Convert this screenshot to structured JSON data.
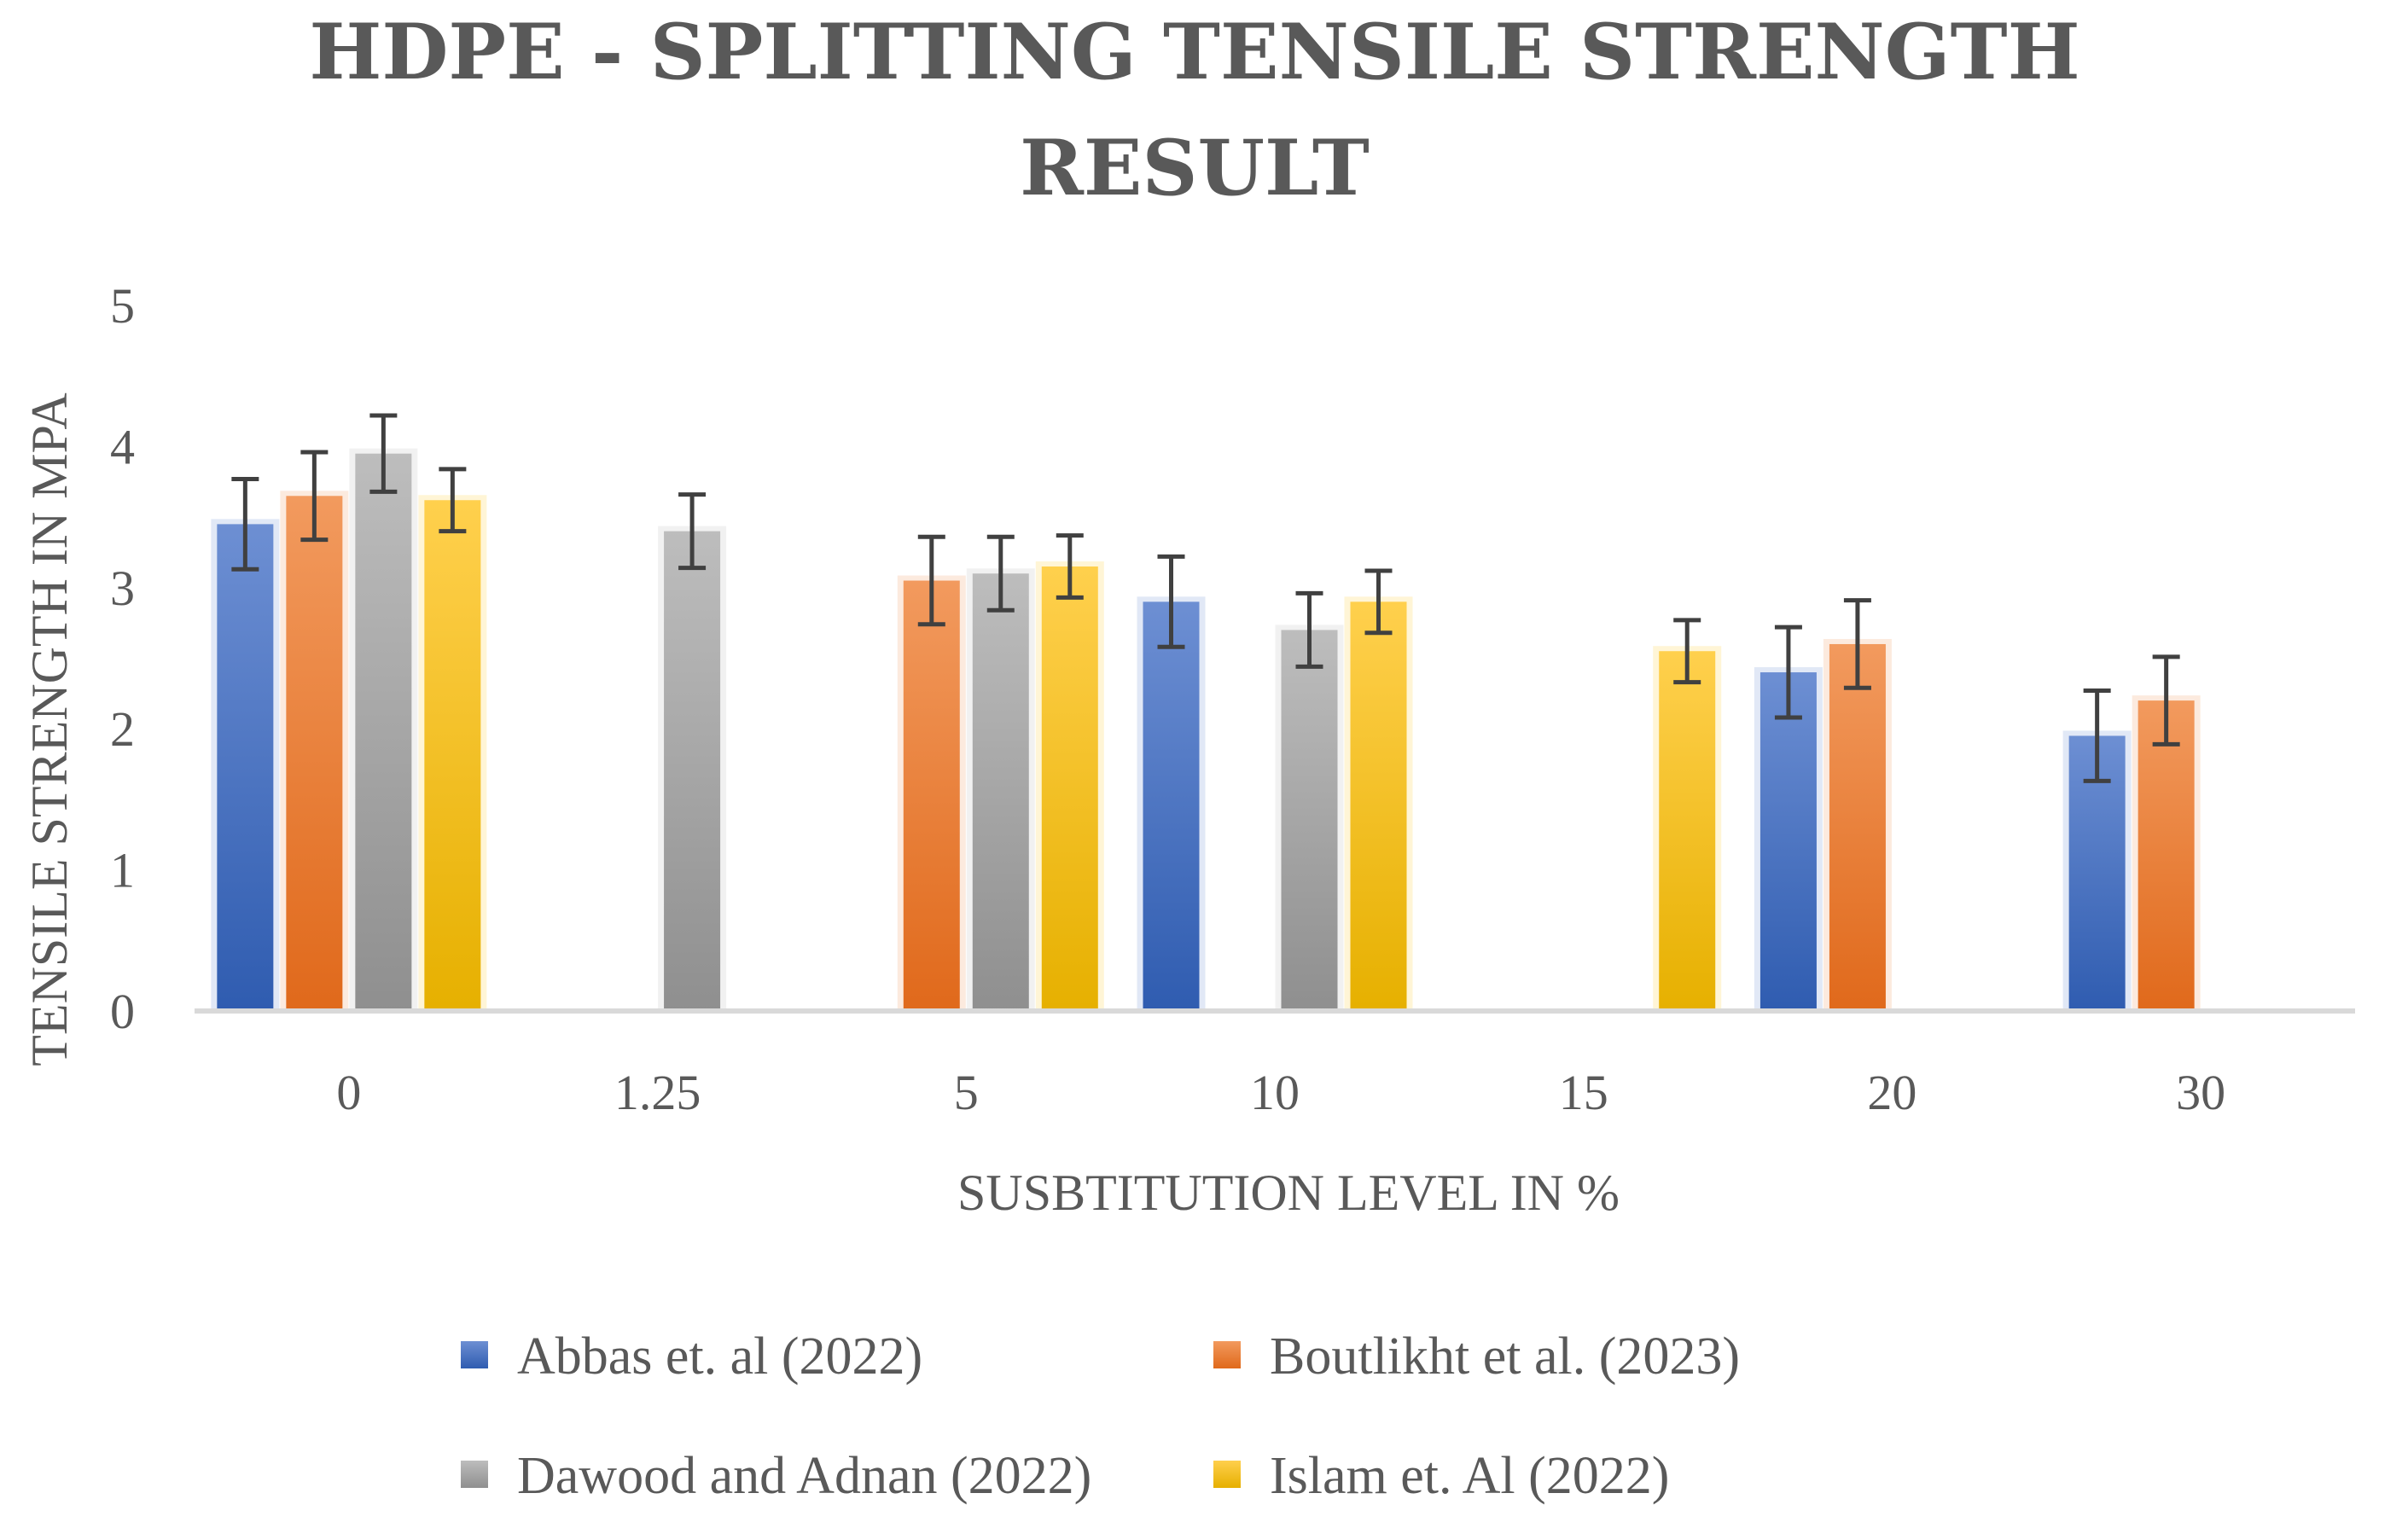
{
  "chart_data": {
    "type": "bar",
    "title_lines": [
      "HDPE - SPLITTING TENSILE STRENGTH",
      "RESULT"
    ],
    "xlabel": "SUSBTITUTION LEVEL IN %",
    "ylabel": "TENSILE STRENGTH IN MPA",
    "categories": [
      "0",
      "1.25",
      "5",
      "10",
      "15",
      "20",
      "30"
    ],
    "ylim": [
      0,
      5
    ],
    "yticks": [
      "0",
      "1",
      "2",
      "3",
      "4",
      "5"
    ],
    "grid": false,
    "error_bars": true,
    "legend_position": "bottom",
    "series": [
      {
        "name": "Abbas et. al (2022)",
        "color": "#4472C4",
        "values": [
          3.45,
          null,
          null,
          2.9,
          null,
          2.4,
          1.95
        ],
        "errors": [
          0.32,
          null,
          null,
          0.32,
          null,
          0.32,
          0.32
        ]
      },
      {
        "name": "Boutlikht et al. (2023)",
        "color": "#ED7D31",
        "values": [
          3.65,
          null,
          3.05,
          null,
          null,
          2.6,
          2.2
        ],
        "errors": [
          0.31,
          null,
          0.31,
          null,
          null,
          0.31,
          0.31
        ]
      },
      {
        "name": "Dawood and Adnan (2022)",
        "color": "#A5A5A5",
        "values": [
          3.95,
          3.4,
          3.1,
          2.7,
          null,
          null,
          null
        ],
        "errors": [
          0.27,
          0.26,
          0.26,
          0.26,
          null,
          null,
          null
        ]
      },
      {
        "name": "Islam et. Al (2022)",
        "color": "#FFC000",
        "values": [
          3.62,
          null,
          3.15,
          2.9,
          2.55,
          null,
          null
        ],
        "errors": [
          0.22,
          null,
          0.22,
          0.22,
          0.22,
          null,
          null
        ]
      }
    ]
  }
}
